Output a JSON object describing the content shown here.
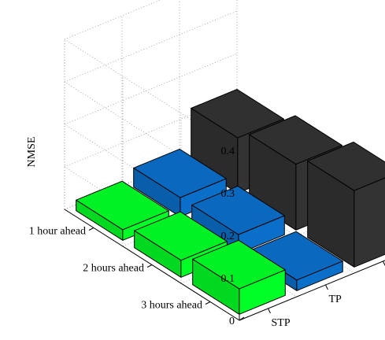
{
  "chart_data": {
    "type": "bar3d",
    "title": "",
    "xlabel": "",
    "zlabel": "",
    "ylabel": "NMSE",
    "zlim": [
      0,
      0.4
    ],
    "z_ticks": [
      "0",
      "0.1",
      "0.2",
      "0.3",
      "0.4"
    ],
    "rows": [
      "1 hour ahead",
      "2 hours ahead",
      "3 hours ahead"
    ],
    "columns": [
      "STP",
      "TP",
      "SP"
    ],
    "column_colors": [
      "#00ff26",
      "#0a6fc8",
      "#333333"
    ],
    "values": [
      [
        0.025,
        0.045,
        0.13
      ],
      [
        0.04,
        0.045,
        0.155
      ],
      [
        0.06,
        0.025,
        0.18
      ]
    ],
    "grid": true
  }
}
